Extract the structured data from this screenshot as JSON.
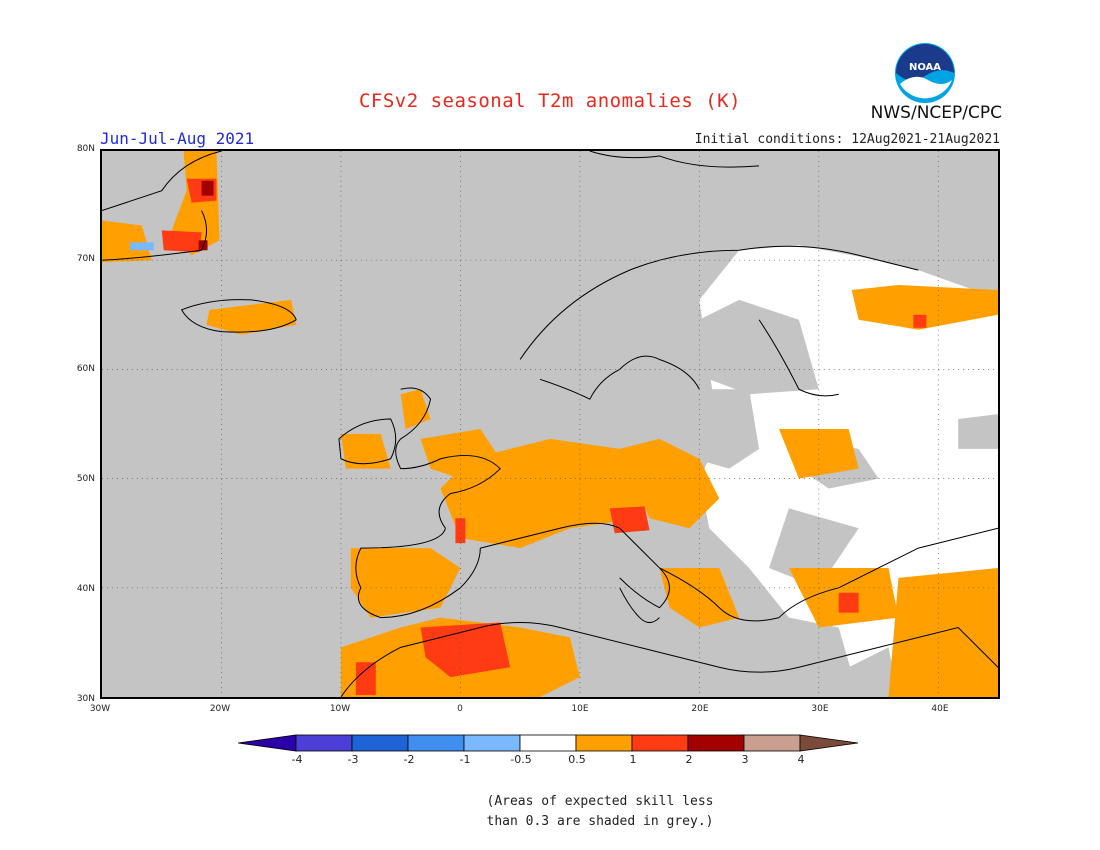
{
  "header": {
    "title": "CFSv2 seasonal T2m anomalies (K)",
    "season": "Jun-Jul-Aug 2021",
    "initial_conditions": "Initial conditions: 12Aug2021-21Aug2021",
    "agency": "NWS/NCEP/CPC",
    "logo_text": "NOAA"
  },
  "map": {
    "lat_labels": [
      "80N",
      "70N",
      "60N",
      "50N",
      "40N",
      "30N"
    ],
    "lon_labels": [
      "30W",
      "20W",
      "10W",
      "0",
      "10E",
      "20E",
      "30E",
      "40E"
    ],
    "extent": {
      "lon": [
        -30,
        45
      ],
      "lat": [
        30,
        80
      ]
    },
    "grid": "dotted",
    "colors": {
      "grey_low_skill": "#c4c4c4",
      "neutral": "#ffffff",
      "warm_0_5_1": "#ff9f00",
      "warm_1_2": "#ff3b14",
      "warm_2_3": "#a30000",
      "cool_-1_-0_5": "#7ab8ff"
    }
  },
  "colorbar": {
    "labels": [
      "-4",
      "-3",
      "-2",
      "-1",
      "-0.5",
      "0.5",
      "1",
      "2",
      "3",
      "4"
    ],
    "colors": [
      "#2b00a8",
      "#4c3fd6",
      "#1f64d6",
      "#3f8ef0",
      "#7ab8ff",
      "#ffffff",
      "#ff9f00",
      "#ff3b14",
      "#a30000",
      "#c9a090",
      "#7a4a3a"
    ]
  },
  "note": {
    "line1": "(Areas of expected skill less",
    "line2": "than 0.3 are shaded in grey.)"
  }
}
